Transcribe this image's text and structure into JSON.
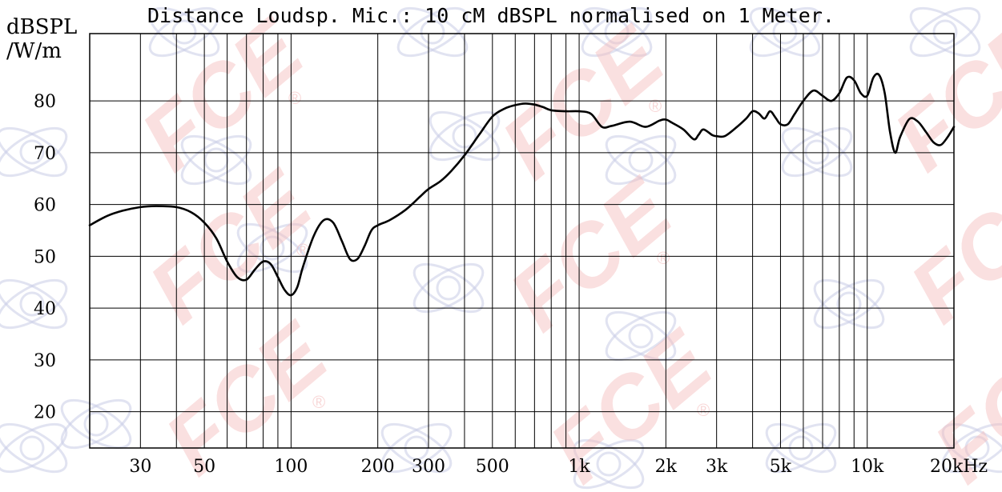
{
  "watermark": {
    "text": "FCE",
    "mark": "®",
    "logo": "atom-speaker-logo"
  },
  "chart_data": {
    "type": "line",
    "title": "Distance Loudsp. Mic.: 10 cM dBSPL normalised on 1 Meter.",
    "ylabel_lines": [
      "dBSPL",
      "/W/m"
    ],
    "xlabel": "",
    "x_scale": "log",
    "xlim": [
      20,
      20000
    ],
    "ylim": [
      13,
      93
    ],
    "x_ticks": [
      {
        "value": 30,
        "label": "30"
      },
      {
        "value": 50,
        "label": "50"
      },
      {
        "value": 100,
        "label": "100"
      },
      {
        "value": 200,
        "label": "200"
      },
      {
        "value": 300,
        "label": "300"
      },
      {
        "value": 500,
        "label": "500"
      },
      {
        "value": 1000,
        "label": "1k"
      },
      {
        "value": 2000,
        "label": "2k"
      },
      {
        "value": 3000,
        "label": "3k"
      },
      {
        "value": 5000,
        "label": "5k"
      },
      {
        "value": 10000,
        "label": "10k"
      },
      {
        "value": 20000,
        "label": "20kHz"
      }
    ],
    "y_ticks": [
      20,
      30,
      40,
      50,
      60,
      70,
      80
    ],
    "grid": true,
    "line_color": "#000000",
    "series": [
      {
        "x": [
          20,
          23,
          26,
          30,
          34,
          40,
          45,
          50,
          55,
          60,
          65,
          70,
          75,
          80,
          85,
          90,
          95,
          100,
          105,
          110,
          120,
          130,
          140,
          150,
          160,
          170,
          180,
          190,
          200,
          220,
          250,
          280,
          300,
          330,
          360,
          400,
          450,
          500,
          550,
          600,
          650,
          700,
          750,
          800,
          900,
          1000,
          1100,
          1200,
          1300,
          1500,
          1700,
          1900,
          2000,
          2100,
          2300,
          2500,
          2600,
          2700,
          2900,
          3000,
          3200,
          3500,
          3800,
          4000,
          4200,
          4400,
          4600,
          4800,
          5000,
          5300,
          5600,
          6000,
          6500,
          7000,
          7500,
          8000,
          8500,
          9000,
          9500,
          10000,
          10500,
          11000,
          11500,
          12000,
          12500,
          13000,
          14000,
          15000,
          16000,
          17000,
          18000,
          19000,
          20000
        ],
        "y": [
          56,
          57.8,
          58.8,
          59.5,
          59.7,
          59.5,
          58.5,
          56.5,
          53.5,
          49,
          46,
          45.5,
          47.5,
          49,
          48.5,
          46,
          43.5,
          42.5,
          44,
          48,
          54,
          57,
          56.5,
          53,
          49.5,
          49.5,
          52,
          55,
          56,
          57,
          59,
          61.5,
          63,
          64.5,
          66.5,
          69.5,
          73.5,
          77,
          78.5,
          79.2,
          79.5,
          79.3,
          78.8,
          78.2,
          78,
          78,
          77.5,
          75,
          75.2,
          76,
          75,
          76.2,
          76.4,
          75.8,
          74.5,
          72.6,
          73.5,
          74.5,
          73.4,
          73.2,
          73.2,
          74.8,
          76.6,
          78,
          77.6,
          76.6,
          78,
          76.8,
          75.5,
          75.5,
          77.5,
          80,
          82,
          81,
          80,
          81.5,
          84.5,
          84,
          81.5,
          81,
          84.5,
          85,
          81.5,
          74,
          70,
          73,
          76.5,
          76,
          74,
          72,
          71.5,
          73,
          75
        ]
      }
    ]
  }
}
